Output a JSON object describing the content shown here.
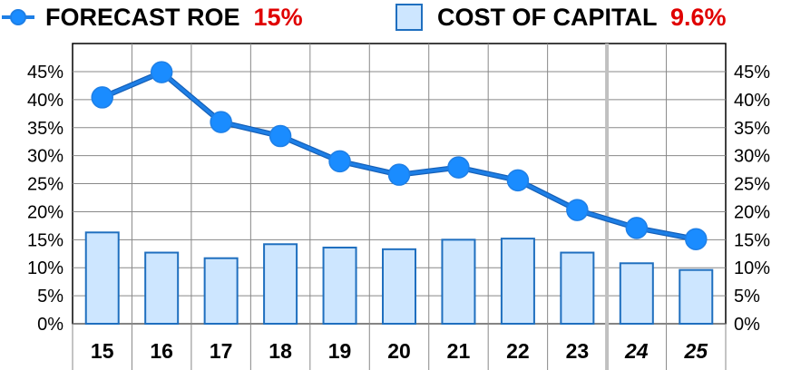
{
  "legend": {
    "forecast_label": "FORECAST ROE",
    "forecast_value": "15%",
    "capital_label": "COST OF CAPITAL",
    "capital_value": "9.6%",
    "forecast_icon": "line-marker-icon",
    "capital_icon": "bar-swatch-icon"
  },
  "colors": {
    "line": "#1e7fe6",
    "marker": "#1a8cff",
    "bar_fill": "#cde6ff",
    "bar_stroke": "#1f6fbf",
    "value_text": "#e00000",
    "grid": "#888888"
  },
  "chart_data": {
    "type": "bar",
    "categories": [
      "15",
      "16",
      "17",
      "18",
      "19",
      "20",
      "21",
      "22",
      "23",
      "24",
      "25"
    ],
    "projected_categories": [
      "24",
      "25"
    ],
    "ylim": [
      0,
      45
    ],
    "y_ticks": [
      "0%",
      "5%",
      "10%",
      "15%",
      "20%",
      "25%",
      "30%",
      "35%",
      "40%",
      "45%"
    ],
    "y_tick_values": [
      0,
      5,
      10,
      15,
      20,
      25,
      30,
      35,
      40,
      45
    ],
    "grid": true,
    "series": [
      {
        "name": "COST OF CAPITAL",
        "type": "bar",
        "values": [
          16.3,
          12.7,
          11.7,
          14.2,
          13.6,
          13.3,
          15.0,
          15.2,
          12.7,
          10.8,
          9.6
        ]
      },
      {
        "name": "FORECAST ROE",
        "type": "line",
        "values": [
          40.4,
          44.9,
          36.0,
          33.5,
          29.0,
          26.6,
          27.9,
          25.6,
          20.3,
          17.1,
          15.1
        ]
      }
    ]
  }
}
